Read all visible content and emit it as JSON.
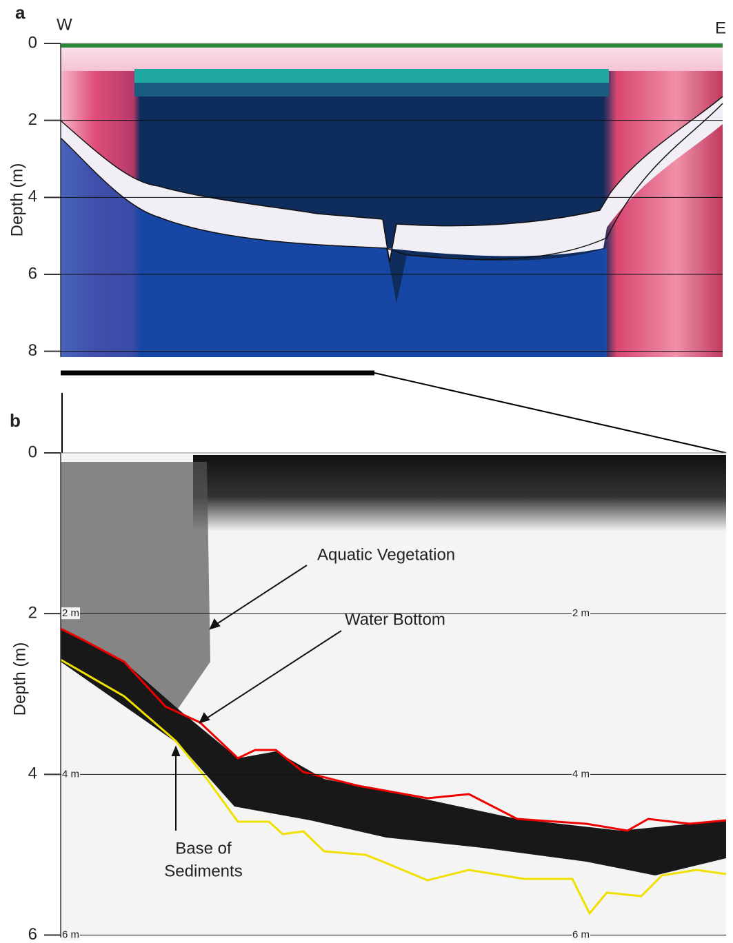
{
  "panel_a": {
    "label": "a",
    "left_label": "W",
    "right_label": "E",
    "axis_title": "Depth (m)",
    "ylim": [
      0,
      8.15
    ],
    "yticks": [
      0,
      2,
      4,
      6,
      8
    ]
  },
  "panel_b": {
    "label": "b",
    "axis_title": "Depth (m)",
    "ylim": [
      0,
      6.03
    ],
    "yticks": [
      0,
      2,
      4,
      6
    ],
    "depth_labels": [
      "2 m",
      "4 m",
      "6 m"
    ],
    "annotations": {
      "vegetation": "Aquatic Vegetation",
      "bottom": "Water Bottom",
      "base": [
        "Base of",
        "Sediments"
      ]
    }
  }
}
